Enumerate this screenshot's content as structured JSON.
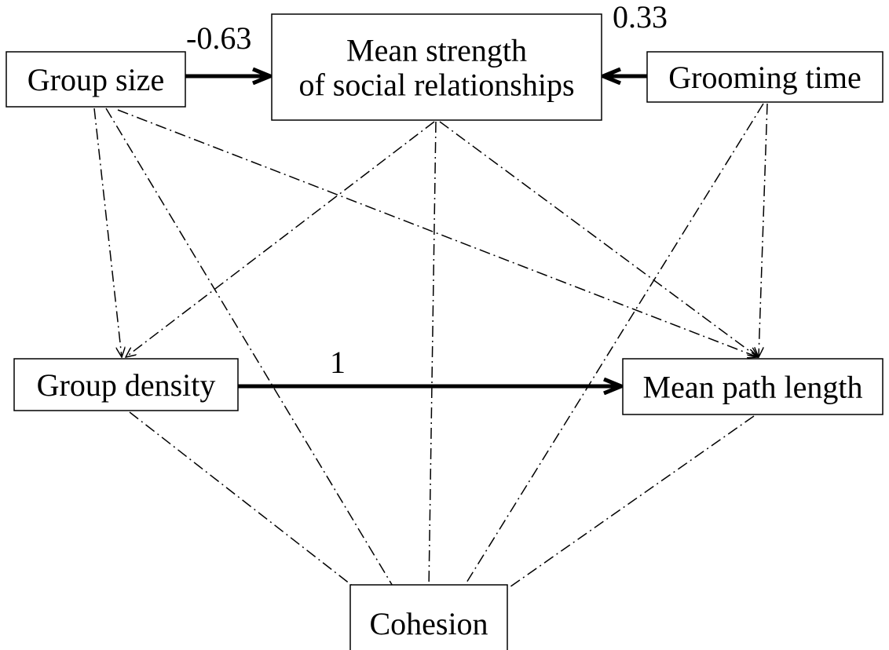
{
  "nodes": [
    {
      "lines": [
        "Group size"
      ]
    },
    {
      "lines": [
        "Mean strength",
        "of social relationships"
      ]
    },
    {
      "lines": [
        "Grooming time"
      ]
    },
    {
      "lines": [
        "Group density"
      ]
    },
    {
      "lines": [
        "Mean path length"
      ]
    },
    {
      "lines": [
        "Cohesion"
      ]
    }
  ],
  "edge_labels": [
    "-0.63",
    "0.33",
    "1"
  ]
}
